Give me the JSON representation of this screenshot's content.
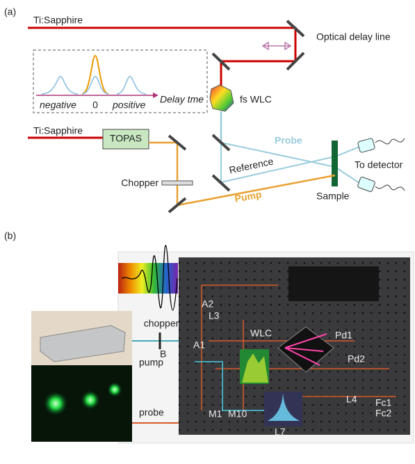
{
  "panel_a": {
    "label": "(a)",
    "laser_top": "Ti:Sapphire",
    "delay_line": "Optical delay line",
    "inset": {
      "negative": "negative",
      "zero": "0",
      "positive": "positive",
      "axis": "Delay tme"
    },
    "wlc": "fs WLC",
    "laser_bottom": "Ti:Sapphire",
    "topas": "TOPAS",
    "probe": "Probe",
    "reference": "Reference",
    "detector": "To detector",
    "chopper": "Chopper",
    "pump": "Pump",
    "sample": "Sample"
  },
  "panel_b": {
    "label": "(b)",
    "chopper": "chopper",
    "chopper_tag": "B",
    "pump": "pump",
    "probe": "probe",
    "components": [
      "A2",
      "L3",
      "WLC",
      "Pd1",
      "Pd2",
      "A1",
      "M10",
      "M1",
      "L7",
      "L4",
      "Fc1",
      "Fc2"
    ]
  }
}
